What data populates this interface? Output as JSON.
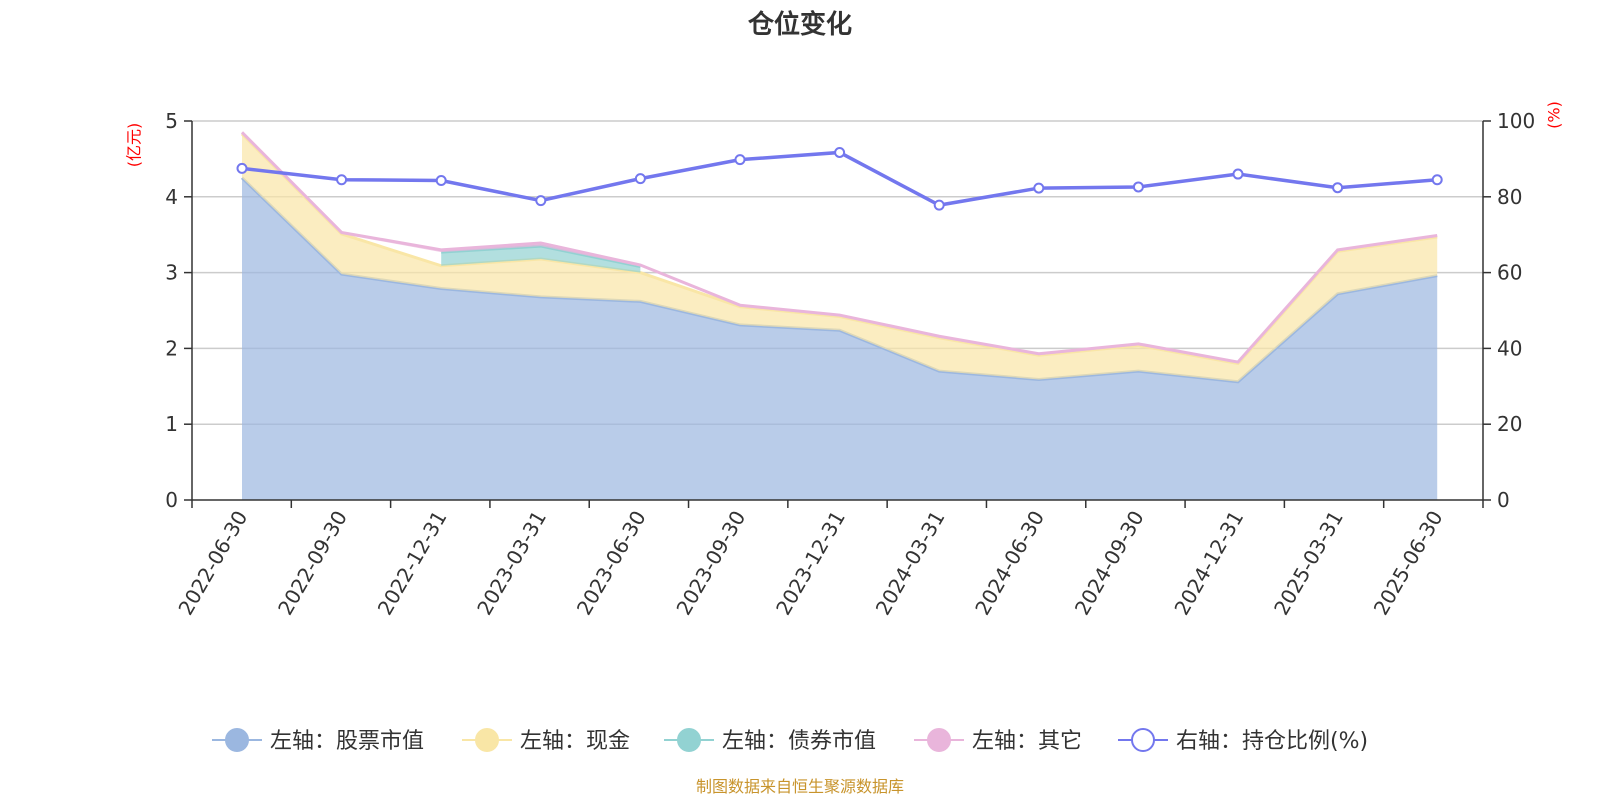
{
  "chart_data": {
    "type": "area",
    "title": "仓位变化",
    "categories": [
      "2022-06-30",
      "2022-09-30",
      "2022-12-31",
      "2023-03-31",
      "2023-06-30",
      "2023-09-30",
      "2023-12-31",
      "2024-03-31",
      "2024-06-30",
      "2024-09-30",
      "2024-12-31",
      "2025-03-31",
      "2025-06-30"
    ],
    "left_axis": {
      "unit": "(亿元)",
      "ylim": [
        0,
        5
      ],
      "ticks": [
        "0",
        "1",
        "2",
        "3",
        "4",
        "5"
      ]
    },
    "right_axis": {
      "unit": "(%)",
      "ylim": [
        0,
        100
      ],
      "ticks": [
        "0",
        "20",
        "40",
        "60",
        "80",
        "100"
      ]
    },
    "grid": true,
    "legend_position": "bottom",
    "series": [
      {
        "name": "左轴：股票市值",
        "axis": "left",
        "type": "area",
        "color": "#9bb7e0",
        "values": [
          4.25,
          2.98,
          2.79,
          2.68,
          2.62,
          2.31,
          2.24,
          1.7,
          1.59,
          1.7,
          1.56,
          2.72,
          2.96
        ]
      },
      {
        "name": "左轴：现金",
        "axis": "left",
        "type": "area",
        "color": "#f9e6a6",
        "values": [
          0.58,
          0.53,
          0.3,
          0.5,
          0.38,
          0.24,
          0.18,
          0.44,
          0.32,
          0.34,
          0.24,
          0.56,
          0.51
        ]
      },
      {
        "name": "左轴：债券市值",
        "axis": "left",
        "type": "area",
        "color": "#92d2d2",
        "values": [
          null,
          null,
          0.18,
          0.17,
          0.08,
          null,
          null,
          null,
          null,
          null,
          null,
          null,
          null
        ]
      },
      {
        "name": "左轴：其它",
        "axis": "left",
        "type": "area",
        "color": "#e9b5db",
        "values": [
          0.02,
          0.02,
          0.03,
          0.04,
          0.02,
          0.02,
          0.02,
          0.02,
          0.02,
          0.02,
          0.02,
          0.02,
          0.02
        ]
      },
      {
        "name": "右轴：持仓比例(%)",
        "axis": "right",
        "type": "line",
        "color": "#7377ee",
        "values": [
          87.5,
          84.5,
          84.3,
          79.0,
          84.8,
          89.8,
          91.7,
          77.8,
          82.3,
          82.6,
          86.0,
          82.4,
          84.5
        ]
      }
    ]
  },
  "footer": {
    "source": "制图数据来自恒生聚源数据库"
  }
}
